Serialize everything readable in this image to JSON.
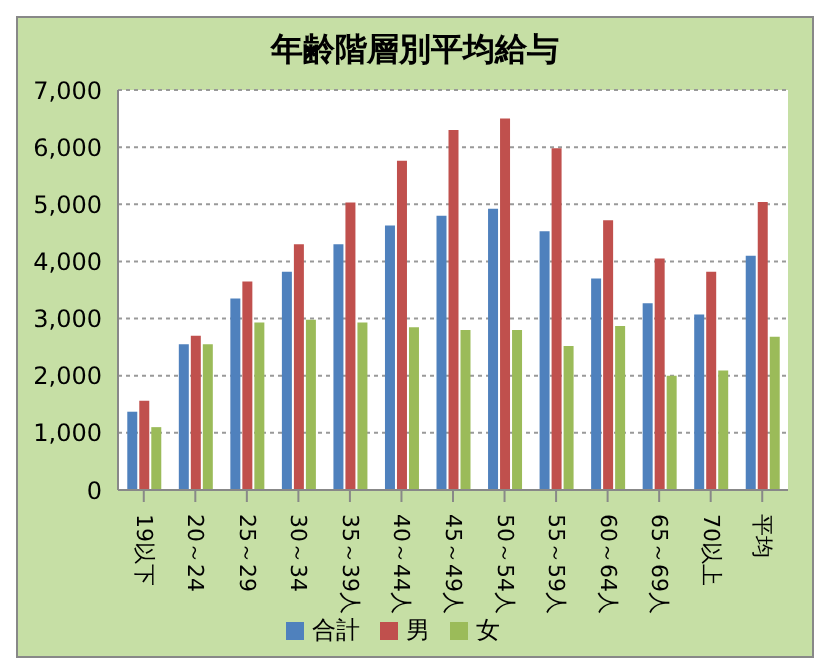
{
  "chart_data": {
    "type": "bar",
    "title": "年齢階層別平均給与",
    "categories": [
      "19以下",
      "20～24",
      "25～29",
      "30～34",
      "35～39人",
      "40～44人",
      "45～49人",
      "50～54人",
      "55～59人",
      "60～64人",
      "65～69人",
      "70以上",
      "平均"
    ],
    "series": [
      {
        "name": "合計",
        "color": "#4f81bd",
        "values": [
          1370,
          2550,
          3350,
          3820,
          4300,
          4630,
          4800,
          4920,
          4530,
          3700,
          3270,
          3070,
          4100
        ]
      },
      {
        "name": "男",
        "color": "#c0504d",
        "values": [
          1560,
          2700,
          3650,
          4300,
          5030,
          5760,
          6300,
          6500,
          5980,
          4720,
          4050,
          3820,
          5040
        ]
      },
      {
        "name": "女",
        "color": "#9bbb59",
        "values": [
          1100,
          2550,
          2930,
          2980,
          2930,
          2850,
          2800,
          2800,
          2520,
          2870,
          2000,
          2090,
          2680
        ]
      }
    ],
    "ylim": [
      0,
      7000
    ],
    "yticks": [
      0,
      {
        "value": 1000,
        "label": "1,000"
      },
      {
        "value": 2000,
        "label": "2,000"
      },
      {
        "value": 3000,
        "label": "3,000"
      },
      {
        "value": 4000,
        "label": "4,000"
      },
      {
        "value": 5000,
        "label": "5,000"
      },
      {
        "value": 6000,
        "label": "6,000"
      },
      {
        "value": 7000,
        "label": "7,000"
      }
    ],
    "grid": "y",
    "legend": "bottom"
  }
}
